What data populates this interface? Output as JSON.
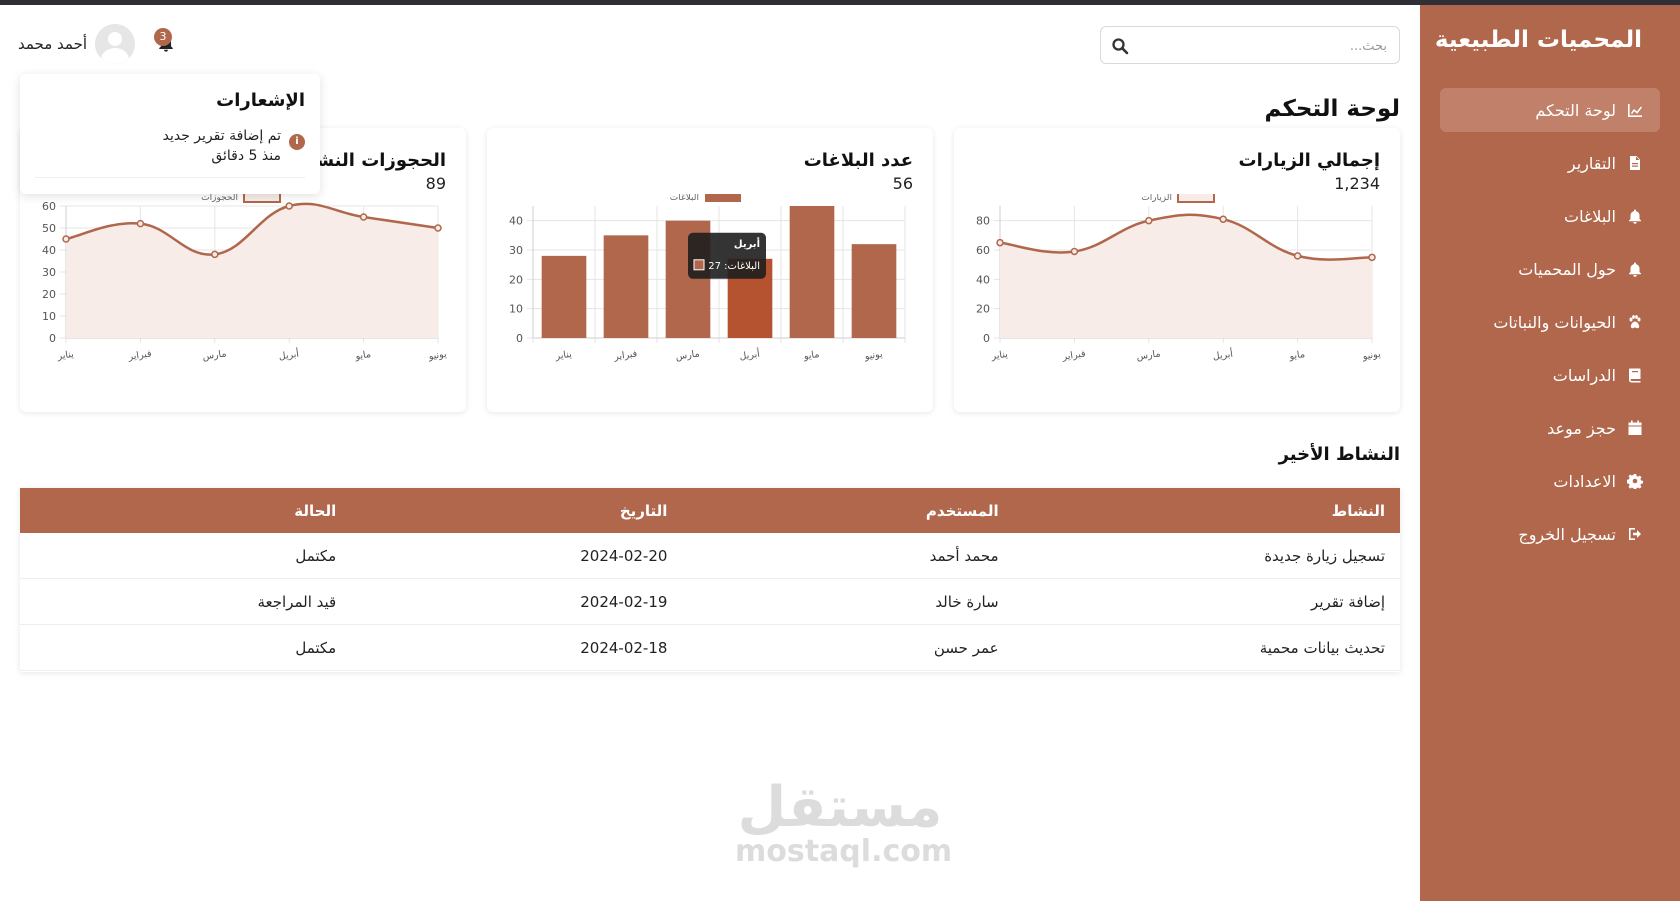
{
  "sidebar": {
    "brand": "المحميات الطبيعية",
    "items": [
      {
        "label": "لوحة التحكم",
        "icon": "chart-line-icon",
        "active": true
      },
      {
        "label": "التقارير",
        "icon": "file-icon",
        "active": false
      },
      {
        "label": "البلاغات",
        "icon": "bell-icon",
        "active": false
      },
      {
        "label": "حول المحميات",
        "icon": "bell-icon",
        "active": false
      },
      {
        "label": "الحيوانات والنباتات",
        "icon": "paw-icon",
        "active": false
      },
      {
        "label": "الدراسات",
        "icon": "book-icon",
        "active": false
      },
      {
        "label": "حجز موعد",
        "icon": "calendar-icon",
        "active": false
      },
      {
        "label": "الاعدادات",
        "icon": "gear-icon",
        "active": false
      },
      {
        "label": "تسجيل الخروج",
        "icon": "logout-icon",
        "active": false
      }
    ]
  },
  "header": {
    "search_placeholder": "بحث...",
    "user_name": "أحمد محمد",
    "notification_count": "3"
  },
  "notifications": {
    "title": "الإشعارات",
    "items": [
      {
        "text": "تم إضافة تقرير جديد",
        "time": "منذ 5 دقائق"
      }
    ]
  },
  "page": {
    "title": "لوحة التحكم",
    "recent_title": "النشاط الأخير"
  },
  "cards": [
    {
      "title": "إجمالي الزيارات",
      "value": "1,234"
    },
    {
      "title": "عدد البلاغات",
      "value": "56"
    },
    {
      "title": "الحجوزات النشطة",
      "value": "89"
    }
  ],
  "chart_data": [
    {
      "type": "line",
      "series": [
        {
          "name": "الزيارات",
          "values": [
            65,
            59,
            80,
            81,
            56,
            55
          ]
        }
      ],
      "categories": [
        "يناير",
        "فبراير",
        "مارس",
        "أبريل",
        "مايو",
        "يونيو"
      ],
      "ylim": [
        0,
        90
      ],
      "yticks": [
        0,
        20,
        40,
        60,
        80
      ],
      "fill": true,
      "legend": "top"
    },
    {
      "type": "bar",
      "series": [
        {
          "name": "البلاغات",
          "values": [
            28,
            35,
            40,
            27,
            45,
            32
          ]
        }
      ],
      "categories": [
        "يناير",
        "فبراير",
        "مارس",
        "أبريل",
        "مايو",
        "يونيو"
      ],
      "ylim": [
        0,
        45
      ],
      "yticks": [
        0,
        10,
        20,
        30,
        40
      ],
      "legend": "top",
      "tooltip": {
        "title": "أبريل",
        "label": "البلاغات: 27",
        "index": 3
      }
    },
    {
      "type": "line",
      "series": [
        {
          "name": "الحجوزات",
          "values": [
            45,
            52,
            38,
            60,
            55,
            50
          ]
        }
      ],
      "categories": [
        "يناير",
        "فبراير",
        "مارس",
        "أبريل",
        "مايو",
        "يونيو"
      ],
      "ylim": [
        0,
        60
      ],
      "yticks": [
        0,
        10,
        20,
        30,
        40,
        50,
        60
      ],
      "fill": true,
      "legend": "top"
    }
  ],
  "table": {
    "headers": [
      "النشاط",
      "المستخدم",
      "التاريخ",
      "الحالة"
    ],
    "rows": [
      [
        "تسجيل زيارة جديدة",
        "محمد أحمد",
        "2024-02-20",
        "مكتمل"
      ],
      [
        "إضافة تقرير",
        "سارة خالد",
        "2024-02-19",
        "قيد المراجعة"
      ],
      [
        "تحديث بيانات محمية",
        "عمر حسن",
        "2024-02-18",
        "مكتمل"
      ]
    ]
  },
  "watermark": {
    "ar": "مستقل",
    "en": "mostaql.com"
  },
  "colors": {
    "accent": "#b0674c",
    "accent_light": "#c0806a",
    "fill": "#f7ece7",
    "bar_hover": "#b5522f"
  }
}
